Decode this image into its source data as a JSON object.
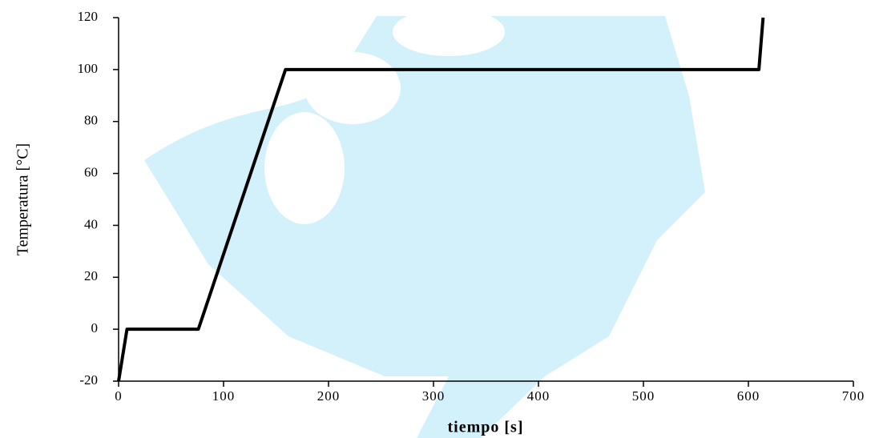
{
  "chart_data": {
    "type": "line",
    "x_label": "tiempo [s]",
    "y_label": "Temperatura [°C]",
    "series": [
      {
        "color": "#000000",
        "x": [
          0,
          8,
          76,
          159,
          610,
          614
        ],
        "values": [
          -20,
          0,
          0,
          100,
          100,
          120
        ]
      }
    ],
    "xlim": [
      0,
      700
    ],
    "xticks": [
      0,
      100,
      200,
      300,
      400,
      500,
      600,
      700
    ],
    "ylim": [
      -20,
      120
    ],
    "yticks": [
      -20,
      0,
      20,
      40,
      60,
      80,
      100,
      120
    ],
    "grid": false
  }
}
